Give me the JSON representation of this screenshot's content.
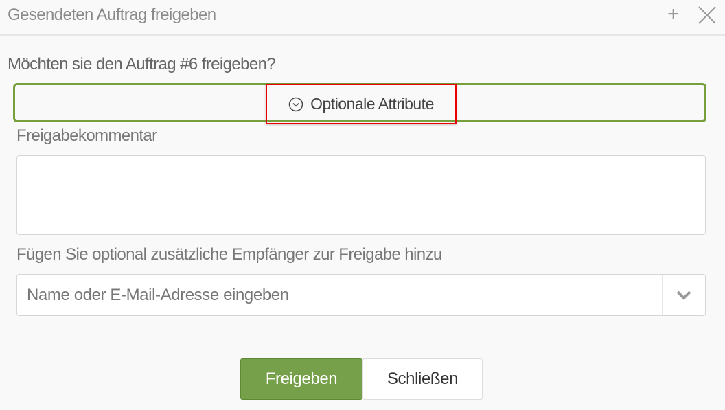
{
  "dialog": {
    "title": "Gesendeten Auftrag freigeben",
    "question": "Möchten sie den Auftrag #6 freigeben?",
    "optional_attributes_label": "Optionale Attribute",
    "comment_label": "Freigabekommentar",
    "comment_value": "",
    "recipients_label": "Fügen Sie optional zusätzliche Empfänger zur Freigabe hinzu",
    "recipients_placeholder": "Name oder E-Mail-Adresse eingeben",
    "approve_label": "Freigeben",
    "close_label": "Schließen"
  },
  "colors": {
    "accent": "#77a04a",
    "highlight": "#e00000"
  },
  "icons": [
    "plus-icon",
    "close-icon",
    "chevron-circle-down-icon",
    "chevron-down-icon"
  ]
}
